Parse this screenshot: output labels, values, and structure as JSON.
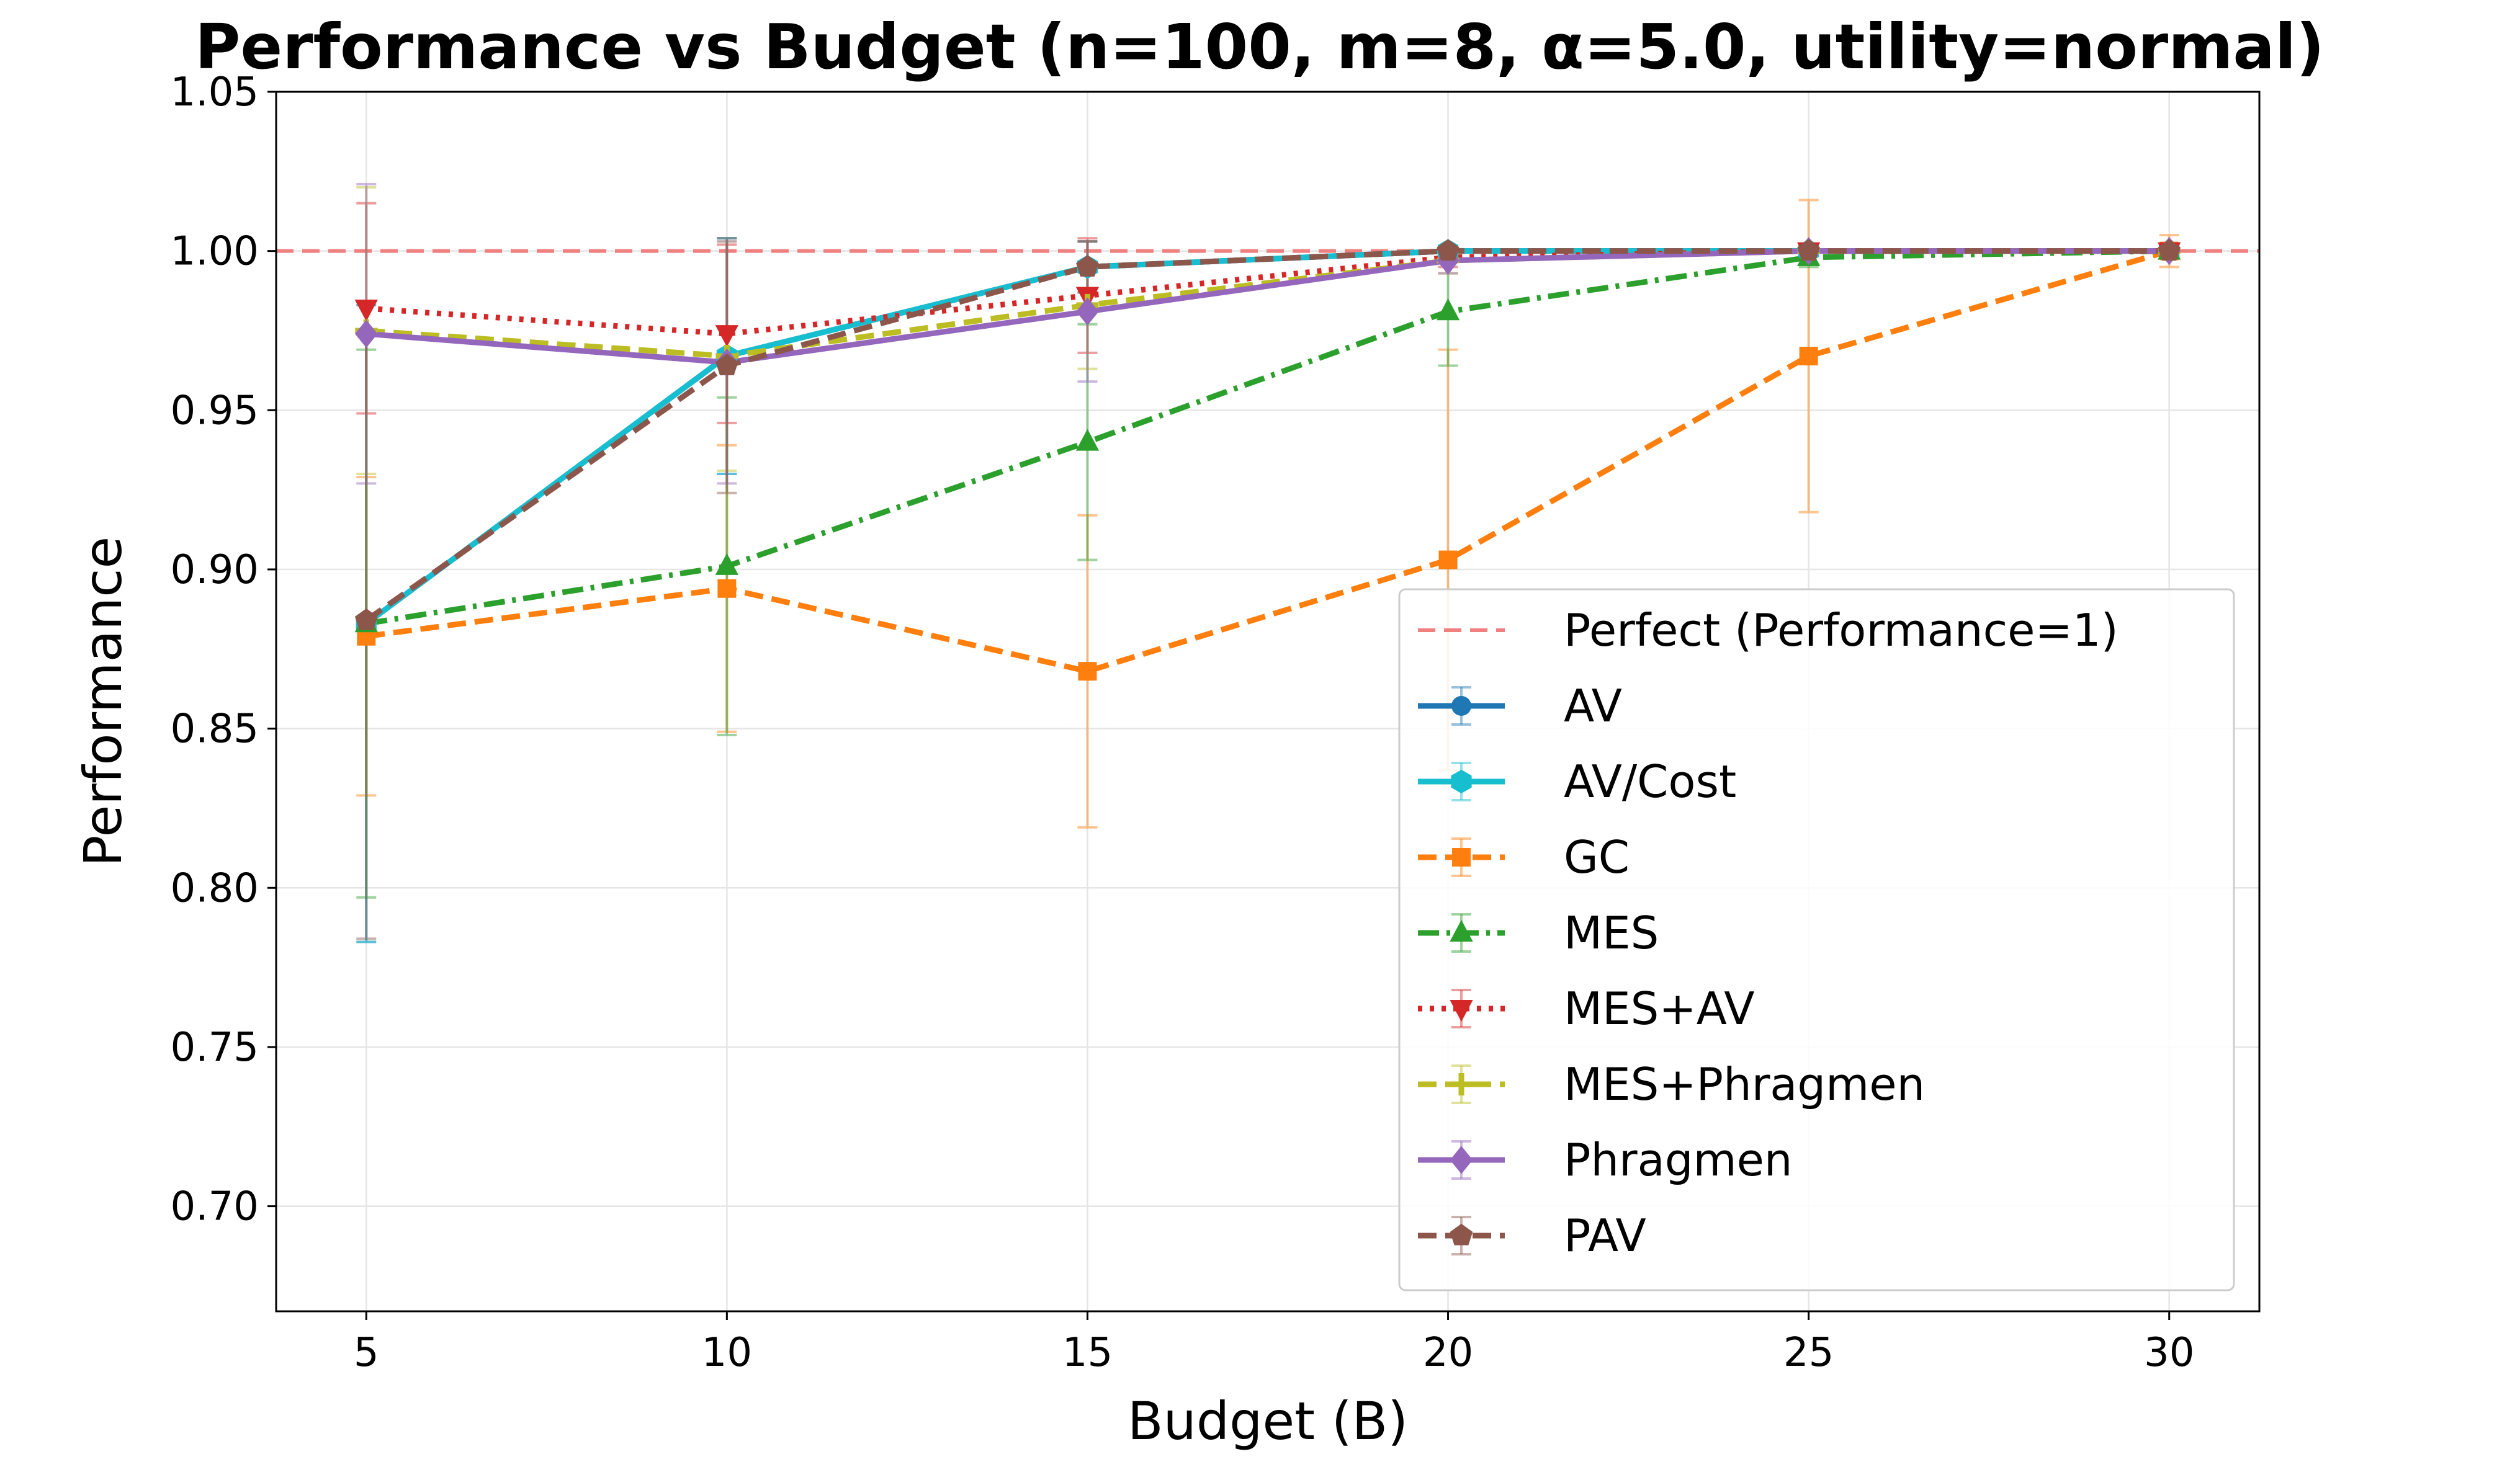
{
  "chart_data": {
    "type": "line",
    "title": "Performance vs Budget (n=100, m=8, α=5.0, utility=normal)",
    "xlabel": "Budget (B)",
    "ylabel": "Performance",
    "x": [
      5,
      10,
      15,
      20,
      25,
      30
    ],
    "xlim": [
      3.75,
      31.25
    ],
    "ylim": [
      0.667,
      1.05
    ],
    "xticks": [
      "5",
      "10",
      "15",
      "20",
      "25",
      "30"
    ],
    "yticks": [
      "0.70",
      "0.75",
      "0.80",
      "0.85",
      "0.90",
      "0.95",
      "1.00",
      "1.05"
    ],
    "grid": true,
    "legend_position": "lower-right",
    "reference_line": {
      "label": "Perfect (Performance=1)",
      "y": 1.0,
      "color": "#f08080"
    },
    "series": [
      {
        "name": "AV",
        "color": "#1f77b4",
        "dash": "solid",
        "marker": "circle",
        "values": [
          0.883,
          0.967,
          0.995,
          1.0,
          1.0,
          1.0
        ],
        "errors": [
          0.1,
          0.037,
          0.008,
          0.001,
          0.0,
          0.0
        ]
      },
      {
        "name": "AV/Cost",
        "color": "#17becf",
        "dash": "solid",
        "marker": "hexagon",
        "values": [
          0.883,
          0.967,
          0.995,
          1.0,
          1.0,
          1.0
        ],
        "errors": [
          0.1,
          0.037,
          0.008,
          0.001,
          0.0,
          0.0
        ]
      },
      {
        "name": "GC",
        "color": "#ff7f0e",
        "dash": "dashed",
        "marker": "square",
        "values": [
          0.879,
          0.894,
          0.868,
          0.903,
          0.967,
          1.0
        ],
        "errors": [
          0.05,
          0.045,
          0.049,
          0.066,
          0.049,
          0.005
        ]
      },
      {
        "name": "MES",
        "color": "#2ca02c",
        "dash": "dashdot",
        "marker": "triangle-up",
        "values": [
          0.883,
          0.901,
          0.94,
          0.981,
          0.998,
          1.0
        ],
        "errors": [
          0.086,
          0.053,
          0.037,
          0.017,
          0.003,
          0.0
        ]
      },
      {
        "name": "MES+AV",
        "color": "#d62728",
        "dash": "dotted",
        "marker": "triangle-down",
        "values": [
          0.982,
          0.974,
          0.986,
          0.998,
          1.0,
          1.0
        ],
        "errors": [
          0.033,
          0.028,
          0.018,
          0.003,
          0.0,
          0.0
        ]
      },
      {
        "name": "MES+Phragmen",
        "color": "#bcbd22",
        "dash": "dashed",
        "marker": "plus",
        "values": [
          0.975,
          0.967,
          0.983,
          0.997,
          1.0,
          1.0
        ],
        "errors": [
          0.045,
          0.036,
          0.02,
          0.004,
          0.0,
          0.0
        ]
      },
      {
        "name": "Phragmen",
        "color": "#9467bd",
        "dash": "solid",
        "marker": "diamond",
        "values": [
          0.974,
          0.965,
          0.981,
          0.997,
          1.0,
          1.0
        ],
        "errors": [
          0.047,
          0.038,
          0.022,
          0.004,
          0.0,
          0.0
        ]
      },
      {
        "name": "PAV",
        "color": "#8c564b",
        "dash": "dashed",
        "marker": "pentagon",
        "values": [
          0.884,
          0.964,
          0.995,
          1.0,
          1.0,
          1.0
        ],
        "errors": [
          0.1,
          0.04,
          0.008,
          0.001,
          0.0,
          0.0
        ]
      }
    ]
  }
}
